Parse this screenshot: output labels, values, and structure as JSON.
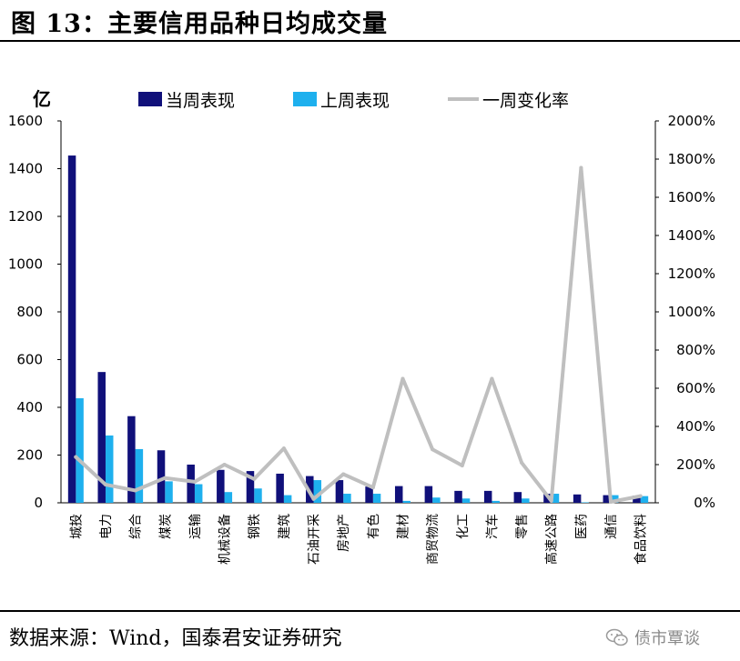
{
  "title": "图 13：主要信用品种日均成交量",
  "source": "数据来源：Wind，国泰君安证券研究",
  "watermark": "债市覃谈",
  "colors": {
    "current": "#10107a",
    "previous": "#1eb0ee",
    "change": "#bfbfbf"
  },
  "chart_data": {
    "type": "bar",
    "title": "主要信用品种日均成交量",
    "ylabel": "亿",
    "ylim": [
      0,
      1600
    ],
    "y_ticks": [
      "0",
      "200",
      "400",
      "600",
      "800",
      "1000",
      "1200",
      "1400",
      "1600"
    ],
    "y2lim": [
      0,
      2000
    ],
    "y2_ticks": [
      "0%",
      "200%",
      "400%",
      "600%",
      "800%",
      "1000%",
      "1200%",
      "1400%",
      "1600%",
      "1800%",
      "2000%"
    ],
    "categories": [
      "城投",
      "电力",
      "综合",
      "煤炭",
      "运输",
      "机械设备",
      "钢铁",
      "建筑",
      "石油开采",
      "房地产",
      "有色",
      "建材",
      "商贸物流",
      "化工",
      "汽车",
      "零售",
      "高速公路",
      "医药",
      "通信",
      "食品饮料"
    ],
    "series": [
      {
        "name": "当周表现",
        "axis": "left",
        "kind": "bar",
        "values": [
          1455,
          548,
          363,
          220,
          160,
          138,
          133,
          122,
          112,
          95,
          68,
          70,
          70,
          50,
          50,
          45,
          38,
          35,
          32,
          30
        ]
      },
      {
        "name": "上周表现",
        "axis": "left",
        "kind": "bar",
        "values": [
          438,
          282,
          225,
          90,
          78,
          45,
          60,
          32,
          95,
          38,
          38,
          8,
          22,
          18,
          8,
          18,
          38,
          2,
          32,
          28
        ]
      },
      {
        "name": "一周变化率",
        "axis": "right",
        "kind": "line",
        "values": [
          240,
          95,
          65,
          130,
          110,
          200,
          125,
          285,
          20,
          150,
          80,
          650,
          280,
          195,
          650,
          210,
          10,
          1755,
          5,
          35
        ]
      }
    ],
    "legend": [
      "当周表现",
      "上周表现",
      "一周变化率"
    ],
    "legend_position": "top",
    "grid": false
  }
}
